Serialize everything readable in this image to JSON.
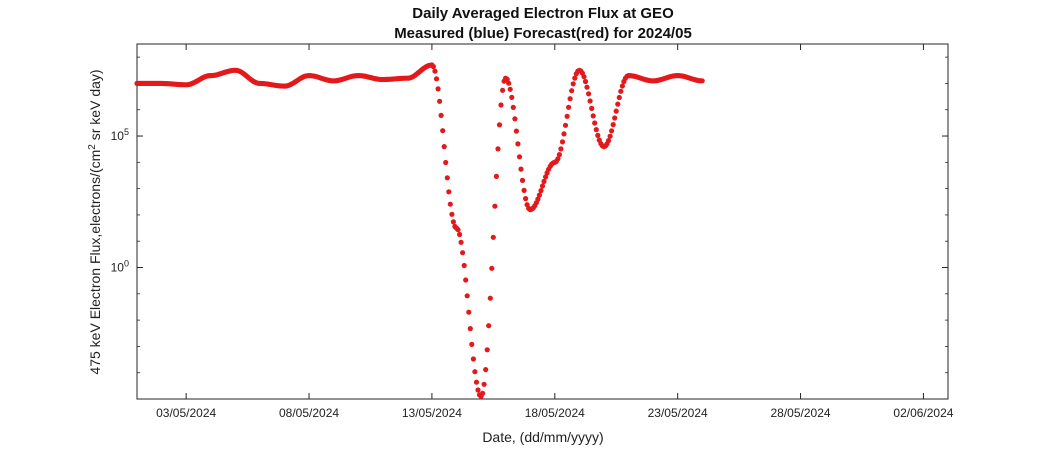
{
  "chart_data": {
    "type": "scatter",
    "title": "Daily Averaged Electron Flux at GEO",
    "subtitle": "Measured (blue) Forecast(red) for 2024/05",
    "xlabel": "Date, (dd/mm/yyyy)",
    "ylabel": "475 keV Electron Flux,electrons/(cm2 sr keV day)",
    "ylabel_parts": [
      "475 keV Electron Flux,electrons/(cm",
      "2",
      " sr keV day)"
    ],
    "x_range": [
      "2024-05-01",
      "2024-06-03"
    ],
    "y_range_log10": [
      -5,
      8.5
    ],
    "y_scale": "log",
    "x_ticks": [
      "03/05/2024",
      "08/05/2024",
      "13/05/2024",
      "18/05/2024",
      "23/05/2024",
      "28/05/2024",
      "02/06/2024"
    ],
    "y_ticks": [
      {
        "base": "10",
        "exp": "5"
      },
      {
        "base": "10",
        "exp": "0"
      }
    ],
    "grid": false,
    "colors": {
      "forecast": "#e3191c",
      "axes": "#262626"
    },
    "series": [
      {
        "color": "#e3191c",
        "points": [
          [
            "2024-05-01",
            7.0
          ],
          [
            "2024-05-02",
            7.0
          ],
          [
            "2024-05-03",
            6.95
          ],
          [
            "2024-05-04",
            7.3
          ],
          [
            "2024-05-05",
            7.5
          ],
          [
            "2024-05-06",
            7.0
          ],
          [
            "2024-05-07",
            6.9
          ],
          [
            "2024-05-08",
            7.3
          ],
          [
            "2024-05-09",
            7.1
          ],
          [
            "2024-05-10",
            7.3
          ],
          [
            "2024-05-11",
            7.15
          ],
          [
            "2024-05-12",
            7.2
          ],
          [
            "2024-05-13",
            7.7
          ],
          [
            "2024-05-14",
            1.5
          ],
          [
            "2024-05-15",
            -4.9
          ],
          [
            "2024-05-16",
            7.2
          ],
          [
            "2024-05-17",
            2.2
          ],
          [
            "2024-05-18",
            4.0
          ],
          [
            "2024-05-19",
            7.5
          ],
          [
            "2024-05-20",
            4.6
          ],
          [
            "2024-05-21",
            7.3
          ],
          [
            "2024-05-22",
            7.1
          ],
          [
            "2024-05-23",
            7.3
          ],
          [
            "2024-05-24",
            7.1
          ]
        ]
      }
    ]
  }
}
